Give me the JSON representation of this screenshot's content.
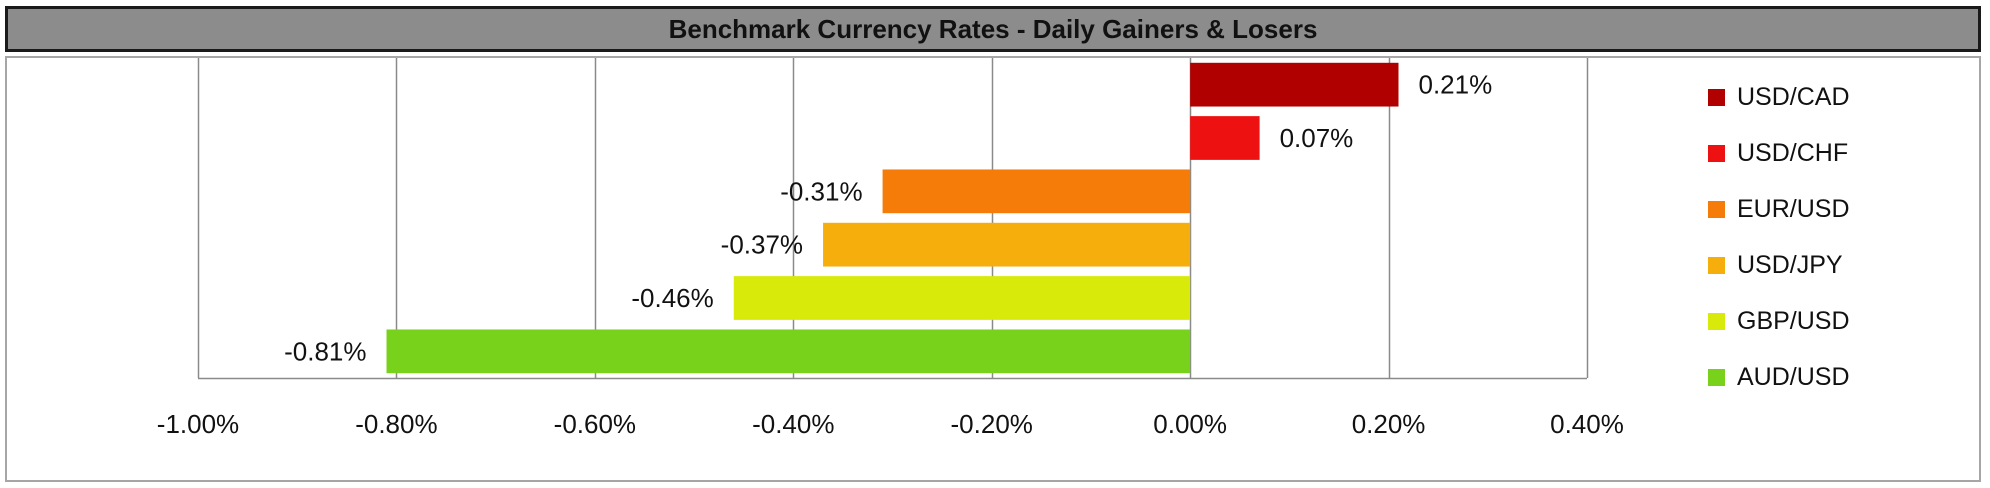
{
  "chart_data": {
    "type": "bar",
    "orientation": "horizontal",
    "title": "Benchmark Currency Rates - Daily Gainers & Losers",
    "categories": [
      "USD/CAD",
      "USD/CHF",
      "EUR/USD",
      "USD/JPY",
      "GBP/USD",
      "AUD/USD"
    ],
    "values": [
      0.21,
      0.07,
      -0.31,
      -0.37,
      -0.46,
      -0.81
    ],
    "value_labels": [
      "0.21%",
      "0.07%",
      "-0.31%",
      "-0.37%",
      "-0.46%",
      "-0.81%"
    ],
    "colors": [
      "#b00000",
      "#ee1111",
      "#f57c09",
      "#f6ae0c",
      "#d8ea0a",
      "#78d21c"
    ],
    "xlim": [
      -1.0,
      0.4
    ],
    "x_ticks": [
      -1.0,
      -0.8,
      -0.6,
      -0.4,
      -0.2,
      0.0,
      0.2,
      0.4
    ],
    "x_tick_labels": [
      "-1.00%",
      "-0.80%",
      "-0.60%",
      "-0.40%",
      "-0.20%",
      "0.00%",
      "0.20%",
      "0.40%"
    ],
    "grid": "vertical",
    "legend": {
      "position": "right",
      "entries": [
        "USD/CAD",
        "USD/CHF",
        "EUR/USD",
        "USD/JPY",
        "GBP/USD",
        "AUD/USD"
      ]
    }
  }
}
